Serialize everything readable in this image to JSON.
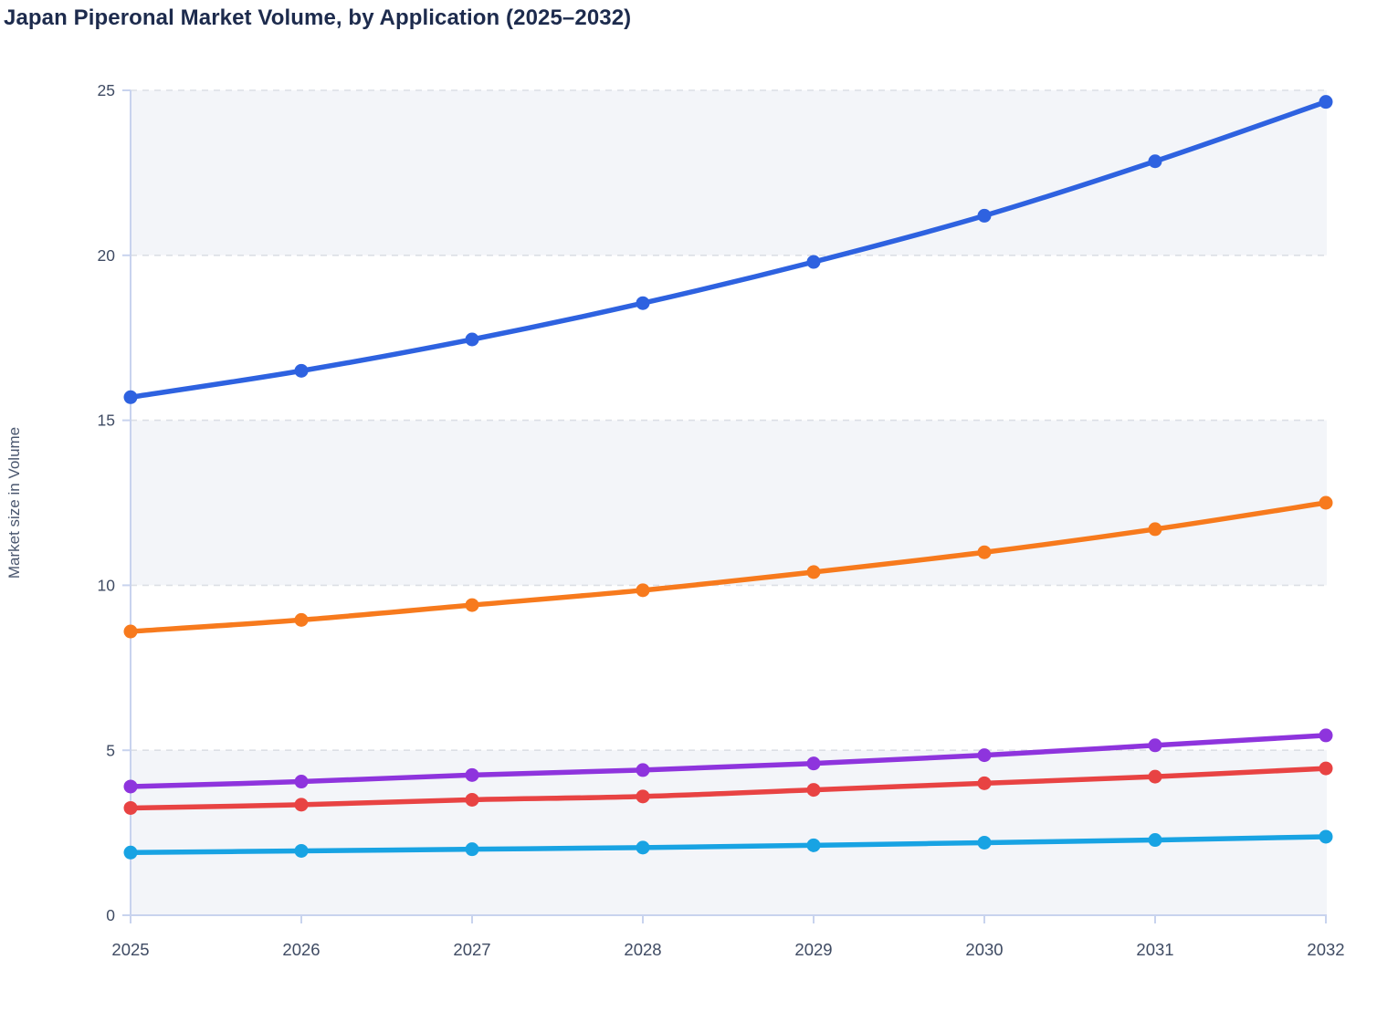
{
  "title": "Japan Piperonal Market Volume, by Application (2025–2032)",
  "chart_data": {
    "type": "line",
    "title": "Japan Piperonal Market Volume, by Application (2025–2032)",
    "xlabel": "",
    "ylabel": "Market size in Volume",
    "x": [
      2025,
      2026,
      2027,
      2028,
      2029,
      2030,
      2031,
      2032
    ],
    "x_tick_labels": [
      "2025",
      "2026",
      "2027",
      "2028",
      "2029",
      "2030",
      "2031",
      "2032"
    ],
    "ylim": [
      0,
      25
    ],
    "y_ticks": [
      0,
      5,
      10,
      15,
      20,
      25
    ],
    "y_tick_labels": [
      "0",
      "5",
      "10",
      "15",
      "20",
      "25"
    ],
    "grid": "horizontal dashed gridlines at 5,10,15,20,25",
    "plot_background": "alternating horizontal stripes (0-5, 10-15, 20-25 tinted)",
    "legend": "none",
    "marker": "filled circle on every data point",
    "series": [
      {
        "name": "blue",
        "color": "#2e62e0",
        "values": [
          15.7,
          16.5,
          17.45,
          18.55,
          19.8,
          21.2,
          22.85,
          24.65
        ]
      },
      {
        "name": "orange",
        "color": "#f77a1d",
        "values": [
          8.6,
          8.95,
          9.4,
          9.85,
          10.4,
          11.0,
          11.7,
          12.5
        ]
      },
      {
        "name": "purple",
        "color": "#8e34dd",
        "values": [
          3.9,
          4.05,
          4.25,
          4.4,
          4.6,
          4.85,
          5.15,
          5.45
        ]
      },
      {
        "name": "red",
        "color": "#e84343",
        "values": [
          3.25,
          3.35,
          3.5,
          3.6,
          3.8,
          4.0,
          4.2,
          4.45
        ]
      },
      {
        "name": "cyan",
        "color": "#18a3e3",
        "values": [
          1.9,
          1.95,
          2.0,
          2.05,
          2.12,
          2.2,
          2.28,
          2.38
        ]
      }
    ]
  },
  "style": {
    "title_color": "#1d2b4d",
    "axis_line_color": "#c8d3ee",
    "gridline_color": "#dcdfe5",
    "band_fill_color": "#f3f5f9",
    "tick_label_color": "#3f4b63",
    "y_axis_title_color": "#49566e",
    "background_color": "#ffffff"
  }
}
